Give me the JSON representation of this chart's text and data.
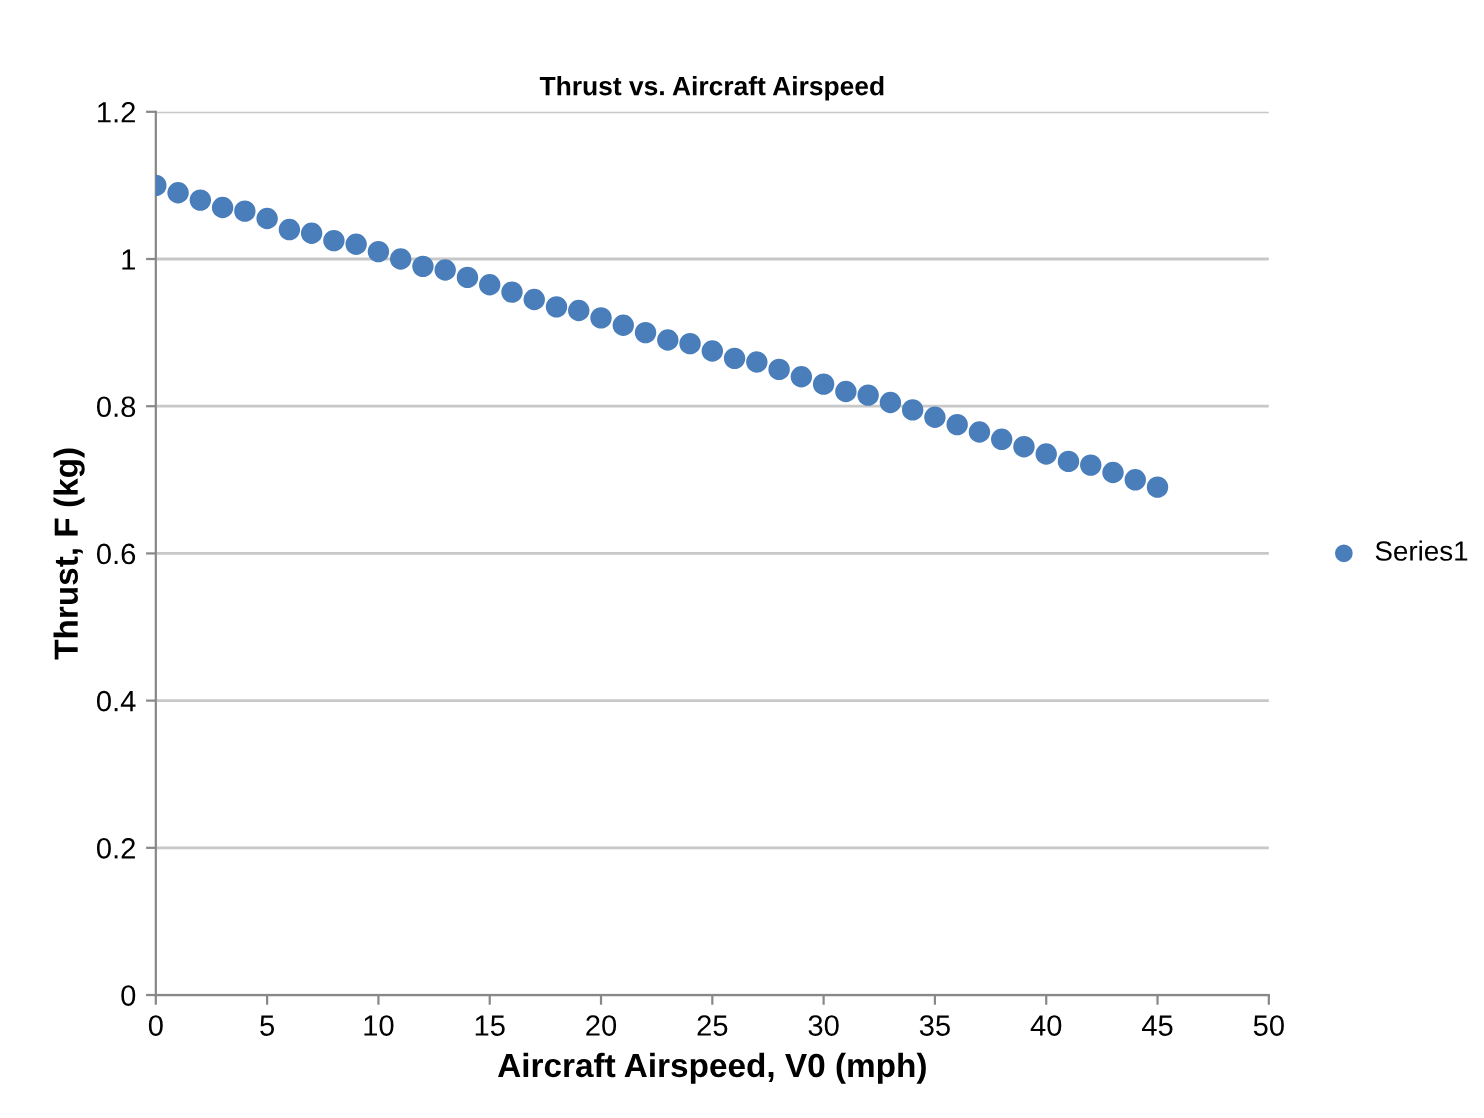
{
  "chart_data": {
    "type": "scatter",
    "title": "Thrust vs. Aircraft Airspeed",
    "xlabel": "Aircraft Airspeed, V0 (mph)",
    "ylabel": "Thrust, F (kg)",
    "x": [
      0,
      1,
      2,
      3,
      4,
      5,
      6,
      7,
      8,
      9,
      10,
      11,
      12,
      13,
      14,
      15,
      16,
      17,
      18,
      19,
      20,
      21,
      22,
      23,
      24,
      25,
      26,
      27,
      28,
      29,
      30,
      31,
      32,
      33,
      34,
      35,
      36,
      37,
      38,
      39,
      40,
      41,
      42,
      43,
      44,
      45
    ],
    "series": [
      {
        "name": "Series1",
        "color": "#4a7ebb",
        "values": [
          1.1,
          1.09,
          1.08,
          1.07,
          1.065,
          1.055,
          1.04,
          1.035,
          1.025,
          1.02,
          1.01,
          1.0,
          0.99,
          0.985,
          0.975,
          0.965,
          0.955,
          0.945,
          0.935,
          0.93,
          0.92,
          0.91,
          0.9,
          0.89,
          0.885,
          0.875,
          0.865,
          0.86,
          0.85,
          0.84,
          0.83,
          0.82,
          0.815,
          0.805,
          0.795,
          0.785,
          0.775,
          0.765,
          0.755,
          0.745,
          0.735,
          0.725,
          0.72,
          0.71,
          0.7,
          0.69
        ]
      }
    ],
    "xlim": [
      0,
      50
    ],
    "xticks": [
      0,
      5,
      10,
      15,
      20,
      25,
      30,
      35,
      40,
      45,
      50
    ],
    "ylim": [
      0,
      1.2
    ],
    "yticks": [
      0,
      0.2,
      0.4,
      0.6,
      0.8,
      1,
      1.2
    ],
    "grid": "y",
    "legend": "right",
    "marker": "circle"
  }
}
